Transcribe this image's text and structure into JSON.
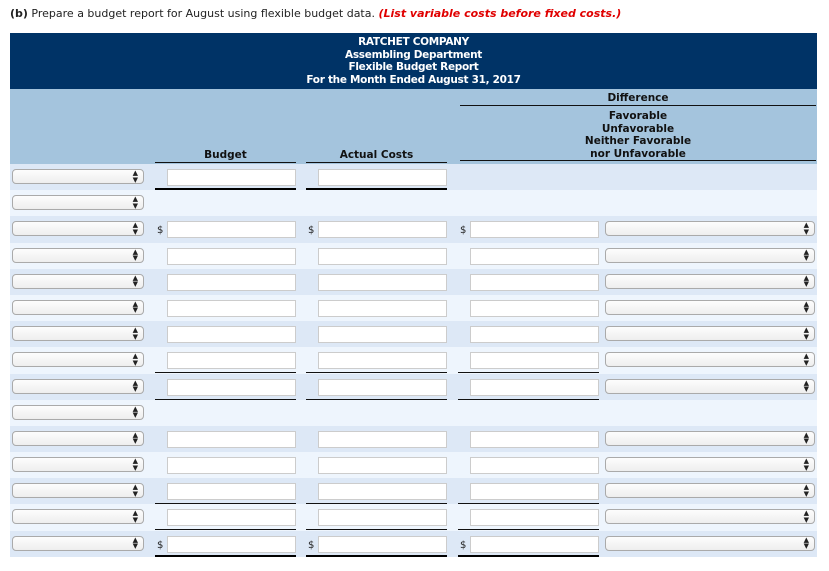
{
  "instruction": {
    "part": "(b)",
    "text": " Prepare a budget report for August using flexible budget data. ",
    "note": "(List variable costs before fixed costs.)"
  },
  "report_title": [
    "RATCHET COMPANY",
    "Assembling Department",
    "Flexible Budget Report",
    "For the Month Ended August 31, 2017"
  ],
  "columns": {
    "budget": "Budget",
    "actual": "Actual Costs",
    "difference": "Difference",
    "fav_options": [
      "Favorable",
      "Unfavorable",
      "Neither Favorable",
      "nor Unfavorable"
    ]
  },
  "currency_symbol": "$",
  "colors": {
    "title_bg": "#003366",
    "header_bg": "#a4c4dd",
    "row_dark": "#dde8f6",
    "row_light": "#eef5fd",
    "note": "#e00000"
  },
  "rows": [
    {
      "label": "",
      "inputs": true,
      "dollar": false,
      "diff": false,
      "underline": "double",
      "budget": "",
      "actual": ""
    },
    {
      "label": "",
      "inputs": false
    },
    {
      "label": "",
      "inputs": true,
      "dollar": true,
      "diff": true,
      "underline": "none",
      "budget": "",
      "actual": "",
      "difference": "",
      "fav": ""
    },
    {
      "label": "",
      "inputs": true,
      "dollar": false,
      "diff": true,
      "underline": "none",
      "budget": "",
      "actual": "",
      "difference": "",
      "fav": ""
    },
    {
      "label": "",
      "inputs": true,
      "dollar": false,
      "diff": true,
      "underline": "none",
      "budget": "",
      "actual": "",
      "difference": "",
      "fav": ""
    },
    {
      "label": "",
      "inputs": true,
      "dollar": false,
      "diff": true,
      "underline": "none",
      "budget": "",
      "actual": "",
      "difference": "",
      "fav": ""
    },
    {
      "label": "",
      "inputs": true,
      "dollar": false,
      "diff": true,
      "underline": "none",
      "budget": "",
      "actual": "",
      "difference": "",
      "fav": ""
    },
    {
      "label": "",
      "inputs": true,
      "dollar": false,
      "diff": true,
      "underline": "single",
      "budget": "",
      "actual": "",
      "difference": "",
      "fav": ""
    },
    {
      "label": "",
      "inputs": true,
      "dollar": false,
      "diff": true,
      "underline": "single",
      "budget": "",
      "actual": "",
      "difference": "",
      "fav": ""
    },
    {
      "label": "",
      "inputs": false
    },
    {
      "label": "",
      "inputs": true,
      "dollar": false,
      "diff": true,
      "underline": "none",
      "budget": "",
      "actual": "",
      "difference": "",
      "fav": ""
    },
    {
      "label": "",
      "inputs": true,
      "dollar": false,
      "diff": true,
      "underline": "none",
      "budget": "",
      "actual": "",
      "difference": "",
      "fav": ""
    },
    {
      "label": "",
      "inputs": true,
      "dollar": false,
      "diff": true,
      "underline": "single",
      "budget": "",
      "actual": "",
      "difference": "",
      "fav": ""
    },
    {
      "label": "",
      "inputs": true,
      "dollar": false,
      "diff": true,
      "underline": "single",
      "budget": "",
      "actual": "",
      "difference": "",
      "fav": ""
    },
    {
      "label": "",
      "inputs": true,
      "dollar": true,
      "diff": true,
      "underline": "double",
      "budget": "",
      "actual": "",
      "difference": "",
      "fav": ""
    }
  ]
}
